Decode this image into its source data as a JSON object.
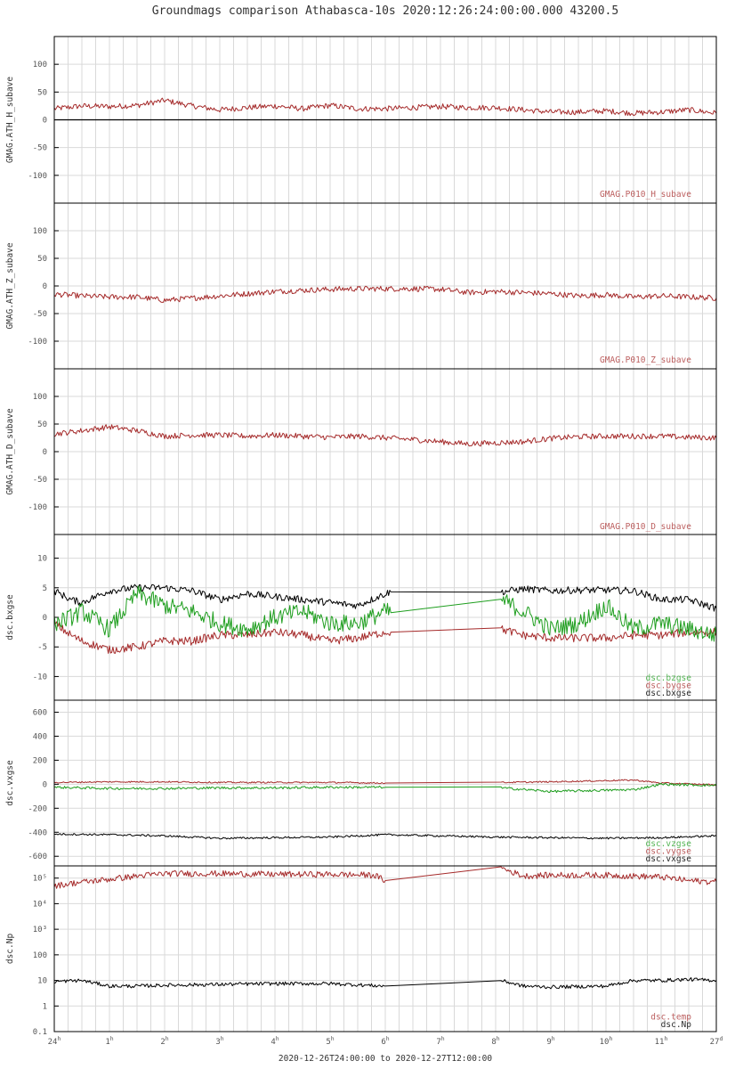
{
  "title": "Groundmags comparison Athabasca-10s 2020:12:26:24:00:00.000 43200.5",
  "footer": "2020-12-26T24:00:00 to 2020-12-27T12:00:00",
  "colors": {
    "red": "#a52a2a",
    "green": "#1e9e1e",
    "black": "#000000",
    "grid": "#d9d9d9"
  },
  "chart_data": [
    {
      "type": "line",
      "ylabel": "GMAG.ATH_H_subave",
      "ylim": [
        -150,
        150
      ],
      "scale": "linear",
      "yticks": [
        100,
        50,
        0,
        -50,
        -100
      ],
      "ytick_labels": [
        "100",
        "50",
        "0",
        "-50",
        "-100"
      ],
      "zero_line": 0,
      "legend": [
        "GMAG.P010_H_subave"
      ],
      "series": [
        {
          "name": "GMAG.P010_H_subave",
          "color": "red",
          "x": [
            0,
            0.5,
            1,
            1.5,
            2,
            2.5,
            3,
            3.5,
            4,
            4.5,
            5,
            5.5,
            6,
            6.5,
            7,
            7.5,
            8,
            8.5,
            9,
            9.5,
            10,
            10.5,
            11,
            11.5,
            12
          ],
          "y": [
            20,
            25,
            24,
            26,
            35,
            25,
            18,
            22,
            25,
            20,
            26,
            20,
            20,
            22,
            24,
            22,
            22,
            18,
            14,
            14,
            16,
            12,
            14,
            18,
            12
          ],
          "noise": 5
        }
      ]
    },
    {
      "type": "line",
      "ylabel": "GMAG.ATH_Z_subave",
      "ylim": [
        -150,
        150
      ],
      "scale": "linear",
      "yticks": [
        100,
        50,
        0,
        -50,
        -100
      ],
      "ytick_labels": [
        "100",
        "50",
        "0",
        "-50",
        "-100"
      ],
      "legend": [
        "GMAG.P010_Z_subave"
      ],
      "series": [
        {
          "name": "GMAG.P010_Z_subave",
          "color": "red",
          "x": [
            0,
            0.5,
            1,
            1.5,
            2,
            2.5,
            3,
            3.5,
            4,
            4.5,
            5,
            5.5,
            6,
            6.5,
            7,
            7.5,
            8,
            8.5,
            9,
            9.5,
            10,
            10.5,
            11,
            11.5,
            12
          ],
          "y": [
            -15,
            -18,
            -20,
            -20,
            -26,
            -22,
            -18,
            -14,
            -10,
            -8,
            -6,
            -5,
            -5,
            -5,
            -6,
            -12,
            -10,
            -12,
            -14,
            -18,
            -16,
            -20,
            -18,
            -20,
            -22
          ],
          "noise": 5
        }
      ]
    },
    {
      "type": "line",
      "ylabel": "GMAG.ATH_D_subave",
      "ylim": [
        -150,
        150
      ],
      "scale": "linear",
      "yticks": [
        100,
        50,
        0,
        -50,
        -100
      ],
      "ytick_labels": [
        "100",
        "50",
        "0",
        "-50",
        "-100"
      ],
      "legend": [
        "GMAG.P010_D_subave"
      ],
      "series": [
        {
          "name": "GMAG.P010_D_subave",
          "color": "red",
          "x": [
            0,
            0.5,
            1,
            1.5,
            2,
            2.5,
            3,
            3.5,
            4,
            4.5,
            5,
            5.5,
            6,
            6.5,
            7,
            7.5,
            8,
            8.5,
            9,
            9.5,
            10,
            10.5,
            11,
            11.5,
            12
          ],
          "y": [
            32,
            38,
            45,
            38,
            28,
            30,
            30,
            28,
            30,
            28,
            26,
            28,
            25,
            22,
            18,
            14,
            16,
            18,
            24,
            27,
            28,
            28,
            28,
            26,
            25
          ],
          "noise": 5
        }
      ]
    },
    {
      "type": "line",
      "ylabel": "dsc.bxgse",
      "ylim": [
        -14,
        14
      ],
      "scale": "linear",
      "yticks": [
        10,
        5,
        0,
        -5,
        -10
      ],
      "ytick_labels": [
        "10",
        "5",
        "0",
        "-5",
        "-10"
      ],
      "legend": [
        "dsc.bzgse",
        "dsc.bygse",
        "dsc.bxgse"
      ],
      "series": [
        {
          "name": "dsc.bxgse",
          "color": "black",
          "x": [
            0,
            0.3,
            0.5,
            1,
            1.5,
            2,
            2.5,
            3,
            3.5,
            4,
            4.5,
            5,
            5.5,
            6,
            6.1,
            8.1,
            8.5,
            9,
            9.5,
            10,
            10.5,
            11,
            11.5,
            12
          ],
          "y": [
            4.5,
            3,
            2.5,
            4.5,
            5,
            5,
            4.5,
            3,
            4,
            3.5,
            3,
            2.5,
            2,
            4,
            4.3,
            4.3,
            4.8,
            4.5,
            4.6,
            4.6,
            4.5,
            3,
            3,
            1.5
          ],
          "noise": 0.6
        },
        {
          "name": "dsc.bygse",
          "color": "red",
          "x": [
            0,
            0.3,
            0.5,
            1,
            1.5,
            2,
            2.5,
            3,
            3.5,
            4,
            4.5,
            5,
            5.5,
            6,
            6.1,
            8.1,
            8.5,
            9,
            9.5,
            10,
            10.5,
            11,
            11.5,
            12
          ],
          "y": [
            -1,
            -3,
            -4,
            -5.5,
            -5,
            -4,
            -4,
            -3,
            -3,
            -2.5,
            -3,
            -4,
            -3.5,
            -2.5,
            -2.5,
            -2,
            -3,
            -3.5,
            -3.5,
            -3.5,
            -3,
            -3,
            -2.5,
            -2.5
          ],
          "noise": 0.7
        },
        {
          "name": "dsc.bzgse",
          "color": "green",
          "x": [
            0,
            0.3,
            0.5,
            1,
            1.5,
            2,
            2.5,
            3,
            3.5,
            4,
            4.5,
            5,
            5.5,
            6,
            6.1,
            8.1,
            8.5,
            9,
            9.5,
            10,
            10.5,
            11,
            11.5,
            12
          ],
          "y": [
            -1,
            0,
            1,
            -2,
            4,
            2,
            1,
            -1,
            -2,
            0,
            1,
            -1,
            -1,
            1,
            0.8,
            3,
            1,
            -2,
            -1,
            2,
            -2,
            -1,
            -2,
            -3
          ],
          "noise": 1.5
        }
      ]
    },
    {
      "type": "line",
      "ylabel": "dsc.vxgse",
      "ylim": [
        -680,
        700
      ],
      "scale": "linear",
      "yticks": [
        600,
        400,
        200,
        0,
        -200,
        -400,
        -600
      ],
      "ytick_labels": [
        "600",
        "400",
        "200",
        "0",
        "-200",
        "-400",
        "-600"
      ],
      "legend": [
        "dsc.vzgse",
        "dsc.vygse",
        "dsc.vxgse"
      ],
      "series": [
        {
          "name": "dsc.vxgse",
          "color": "black",
          "x": [
            0,
            1,
            2,
            3,
            4,
            5,
            6,
            7,
            8,
            9,
            10,
            11,
            12
          ],
          "y": [
            -415,
            -420,
            -430,
            -450,
            -445,
            -440,
            -420,
            -430,
            -440,
            -445,
            -450,
            -445,
            -430
          ],
          "noise": 8
        },
        {
          "name": "dsc.vygse",
          "color": "red",
          "x": [
            0,
            1,
            2,
            3,
            4,
            5,
            6,
            8.1,
            9,
            10,
            10.5,
            11,
            12
          ],
          "y": [
            15,
            20,
            20,
            15,
            15,
            15,
            10,
            15,
            20,
            30,
            35,
            10,
            -5
          ],
          "noise": 6
        },
        {
          "name": "dsc.vzgse",
          "color": "green",
          "x": [
            0,
            1,
            2,
            3,
            4,
            5,
            6,
            8.1,
            9,
            10,
            10.5,
            11,
            12
          ],
          "y": [
            -25,
            -35,
            -35,
            -30,
            -30,
            -25,
            -25,
            -30,
            -60,
            -50,
            -45,
            0,
            -10
          ],
          "noise": 10
        }
      ]
    },
    {
      "type": "line",
      "ylabel": "dsc.Np",
      "ylim": [
        0.1,
        300000
      ],
      "scale": "log",
      "yticks": [
        100000,
        10000,
        1000,
        100,
        10,
        1,
        0.1
      ],
      "ytick_labels": [
        "10⁵",
        "10⁴",
        "10³",
        "100",
        "10",
        "1",
        "0.1"
      ],
      "legend": [
        "dsc.temp",
        "dsc.Np"
      ],
      "series": [
        {
          "name": "dsc.Np",
          "color": "black",
          "x": [
            0,
            0.5,
            1,
            1.5,
            2,
            3,
            4,
            5,
            6,
            8.1,
            8.5,
            9,
            10,
            10.5,
            11,
            11.5,
            12
          ],
          "y": [
            9,
            10,
            6,
            6,
            6.5,
            7,
            7.5,
            7.5,
            6,
            10,
            6,
            5.5,
            6,
            10,
            10,
            11,
            10
          ],
          "noise": 0.07
        },
        {
          "name": "dsc.temp",
          "color": "red",
          "x": [
            0,
            0.5,
            1,
            1.5,
            2,
            3,
            4,
            5,
            5.8,
            6,
            8.1,
            8.5,
            9,
            10,
            11,
            11.5,
            12
          ],
          "y": [
            50000,
            70000,
            90000,
            120000,
            150000,
            150000,
            140000,
            140000,
            130000,
            80000,
            250000,
            120000,
            130000,
            130000,
            110000,
            80000,
            70000
          ],
          "noise": 0.12
        }
      ]
    }
  ],
  "xaxis": {
    "range": [
      0,
      12
    ],
    "minor_step": 0.25,
    "ticks": [
      {
        "x": 0,
        "label": "24",
        "sup": "h"
      },
      {
        "x": 1,
        "label": "1",
        "sup": "h"
      },
      {
        "x": 2,
        "label": "2",
        "sup": "h"
      },
      {
        "x": 3,
        "label": "3",
        "sup": "h"
      },
      {
        "x": 4,
        "label": "4",
        "sup": "h"
      },
      {
        "x": 5,
        "label": "5",
        "sup": "h"
      },
      {
        "x": 6,
        "label": "6",
        "sup": "h"
      },
      {
        "x": 7,
        "label": "7",
        "sup": "h"
      },
      {
        "x": 8,
        "label": "8",
        "sup": "h"
      },
      {
        "x": 9,
        "label": "9",
        "sup": "h"
      },
      {
        "x": 10,
        "label": "10",
        "sup": "h"
      },
      {
        "x": 11,
        "label": "11",
        "sup": "h"
      },
      {
        "x": 12,
        "label": "27",
        "sup": "d"
      }
    ]
  }
}
